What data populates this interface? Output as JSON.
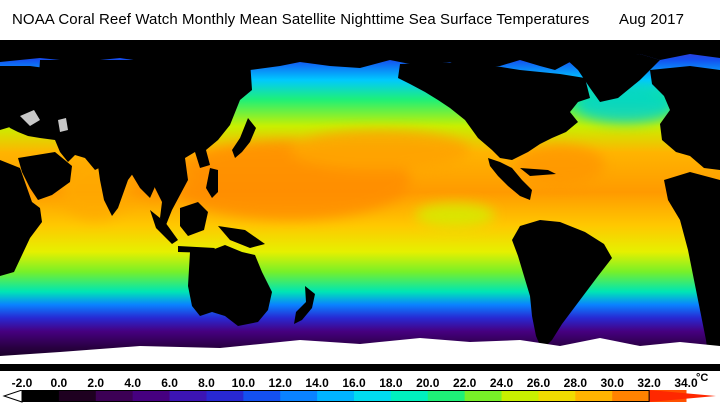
{
  "title": {
    "main": "NOAA Coral Reef Watch Monthly Mean Satellite Nighttime Sea Surface Temperatures",
    "date": "Aug 2017"
  },
  "map": {
    "product": "Monthly mean nighttime sea surface temperature",
    "land_color": "#000000",
    "ice_color": "#ffffff"
  },
  "legend": {
    "unit": "°C",
    "ticks": [
      "-2.0",
      "0.0",
      "2.0",
      "4.0",
      "6.0",
      "8.0",
      "10.0",
      "12.0",
      "14.0",
      "16.0",
      "18.0",
      "20.0",
      "22.0",
      "24.0",
      "26.0",
      "28.0",
      "30.0",
      "32.0",
      "34.0"
    ],
    "range": [
      -2,
      34
    ],
    "colors": [
      "#000000",
      "#1e0020",
      "#3c0055",
      "#460080",
      "#3c14b4",
      "#2828d2",
      "#1450f0",
      "#0a82ff",
      "#00b4ff",
      "#00dcf0",
      "#00f0be",
      "#1ef078",
      "#78f028",
      "#c8f000",
      "#f0dc00",
      "#ffb400",
      "#ff8200",
      "#ff5000",
      "#ff2800"
    ],
    "low_arrow_color": "#ffffff",
    "high_arrow_color": "#ff2800"
  }
}
